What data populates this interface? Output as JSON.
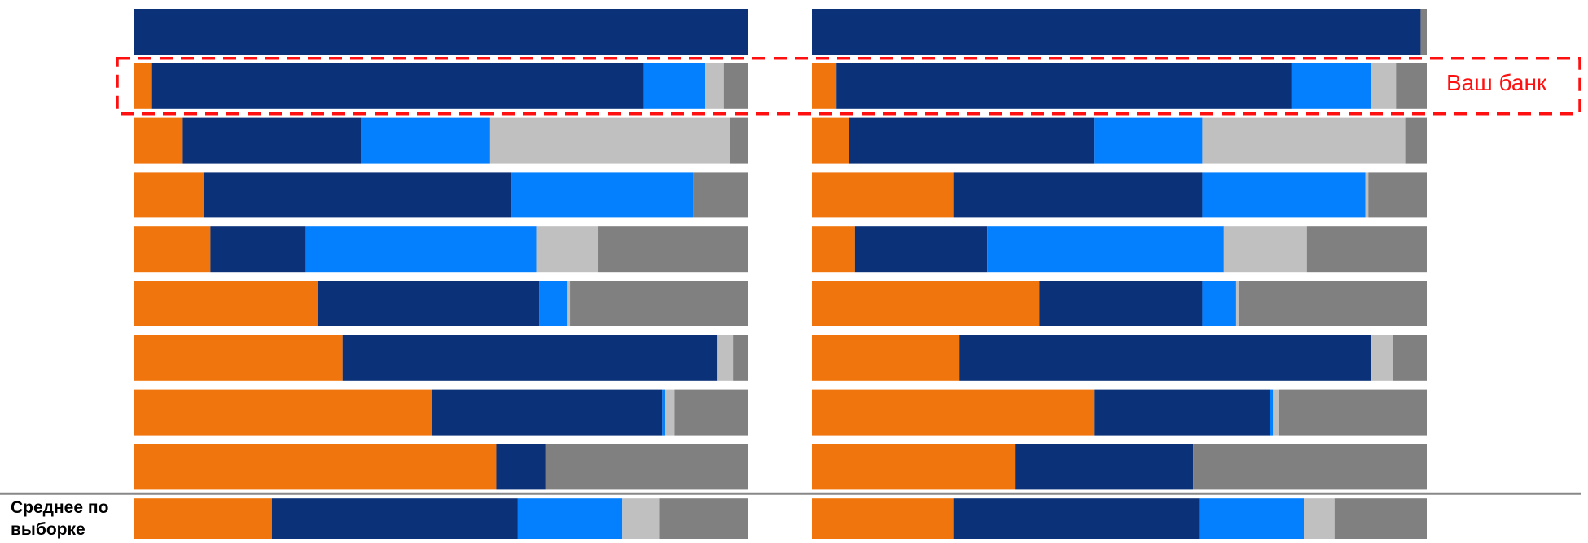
{
  "chart_data": {
    "type": "bar",
    "stacked": "percent",
    "orientation": "horizontal",
    "colors": [
      "#f0750d",
      "#0b3179",
      "#0480ff",
      "#c0c0c0",
      "#808080"
    ],
    "highlight": {
      "row_index": 1,
      "label": "Ваш банк",
      "border_color": "#ff1010"
    },
    "average": {
      "row_index": 9,
      "label": "Среднее по выборке",
      "separator_color": "#888888"
    },
    "panels": [
      {
        "rows": [
          [
            0,
            100,
            0,
            0,
            0
          ],
          [
            3,
            80,
            10,
            3,
            4
          ],
          [
            8,
            29,
            21,
            39,
            3
          ],
          [
            11.5,
            50,
            29.5,
            0,
            9
          ],
          [
            12.5,
            15.5,
            37.5,
            10,
            24.5
          ],
          [
            30,
            36,
            4.5,
            0.5,
            29
          ],
          [
            34,
            61,
            0,
            2.5,
            2.5
          ],
          [
            48.5,
            37.5,
            0.5,
            1.5,
            12
          ],
          [
            59,
            8,
            0,
            0,
            33
          ],
          [
            22.5,
            40,
            17,
            6,
            14.5
          ]
        ]
      },
      {
        "rows": [
          [
            0,
            99,
            0,
            0,
            1
          ],
          [
            4,
            74,
            13,
            4,
            5
          ],
          [
            6,
            40,
            17.5,
            33,
            3.5
          ],
          [
            23,
            40.5,
            26.5,
            0.5,
            9.5
          ],
          [
            7,
            21.5,
            38.5,
            13.5,
            19.5
          ],
          [
            37,
            26.5,
            5.5,
            0.5,
            30.5
          ],
          [
            24,
            67,
            0,
            3.5,
            5.5
          ],
          [
            46,
            28.5,
            0.5,
            1,
            24
          ],
          [
            33,
            29,
            0,
            0,
            38
          ],
          [
            23,
            40,
            17,
            5,
            15
          ]
        ]
      }
    ]
  }
}
